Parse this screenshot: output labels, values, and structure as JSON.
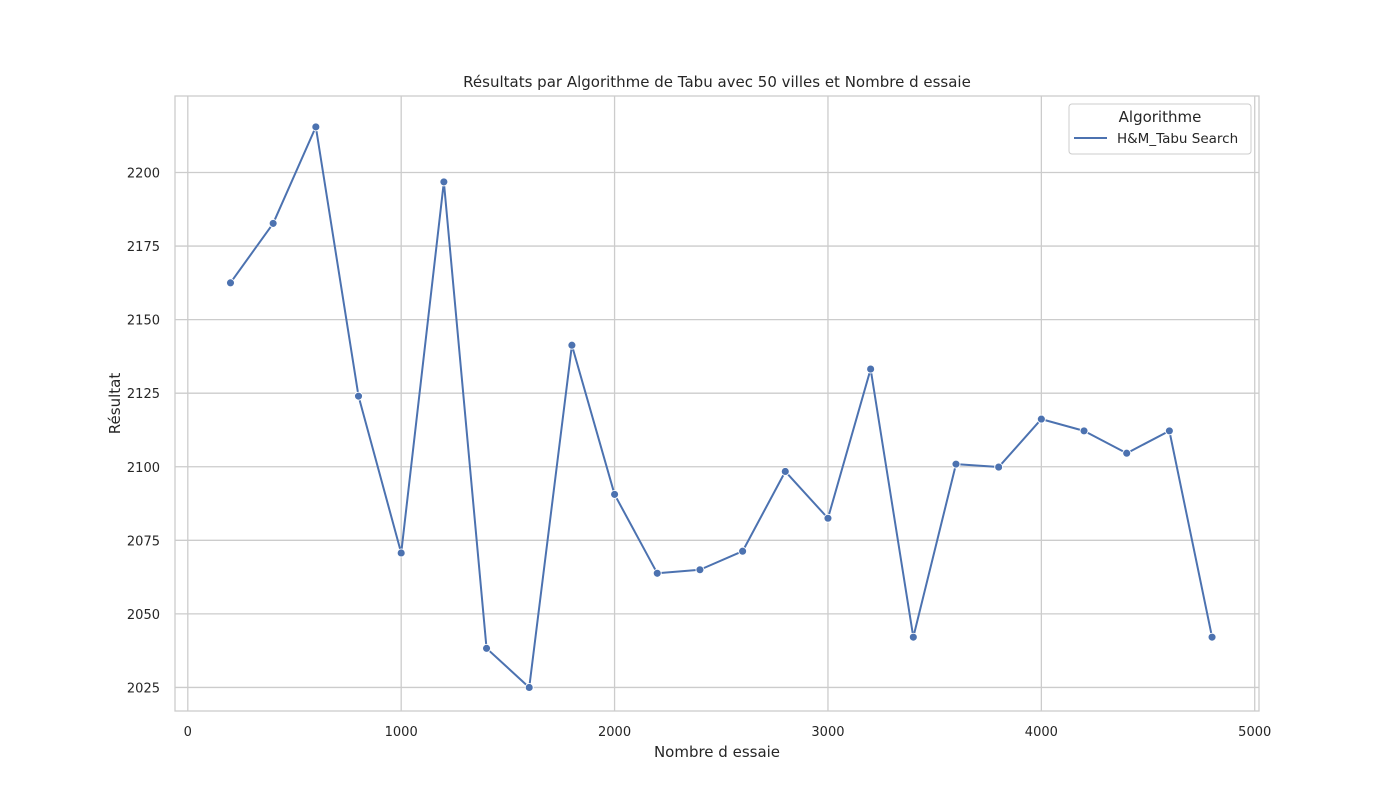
{
  "chart_data": {
    "type": "line",
    "title": "Résultats par Algorithme de Tabu avec 50 villes et Nombre d essaie",
    "xlabel": "Nombre d essaie",
    "ylabel": "Résultat",
    "xlim": [
      -60,
      5020
    ],
    "ylim": [
      2017,
      2226
    ],
    "x_ticks": [
      0,
      1000,
      2000,
      3000,
      4000,
      5000
    ],
    "x_tick_labels": [
      "0",
      "1000",
      "2000",
      "3000",
      "4000",
      "5000"
    ],
    "y_ticks": [
      2025,
      2050,
      2075,
      2100,
      2125,
      2150,
      2175,
      2200
    ],
    "y_tick_labels": [
      "2025",
      "2050",
      "2075",
      "2100",
      "2125",
      "2150",
      "2175",
      "2200"
    ],
    "grid": true,
    "legend": {
      "title": "Algorithme",
      "placement": "top-right"
    },
    "series": [
      {
        "name": "H&M_Tabu Search",
        "color": "#4c72b0",
        "marker": "circle",
        "x": [
          200,
          400,
          600,
          800,
          1000,
          1200,
          1400,
          1600,
          1800,
          2000,
          2200,
          2400,
          2600,
          2800,
          3000,
          3200,
          3400,
          3600,
          3800,
          4000,
          4200,
          4400,
          4600,
          4800
        ],
        "y": [
          2162.5,
          2182.7,
          2215.5,
          2124.0,
          2070.7,
          2196.8,
          2038.3,
          2025.0,
          2141.3,
          2090.6,
          2063.8,
          2065.0,
          2071.3,
          2098.4,
          2082.5,
          2133.2,
          2042.1,
          2100.9,
          2099.9,
          2116.2,
          2112.2,
          2104.6,
          2112.2,
          2042.1
        ]
      }
    ]
  }
}
